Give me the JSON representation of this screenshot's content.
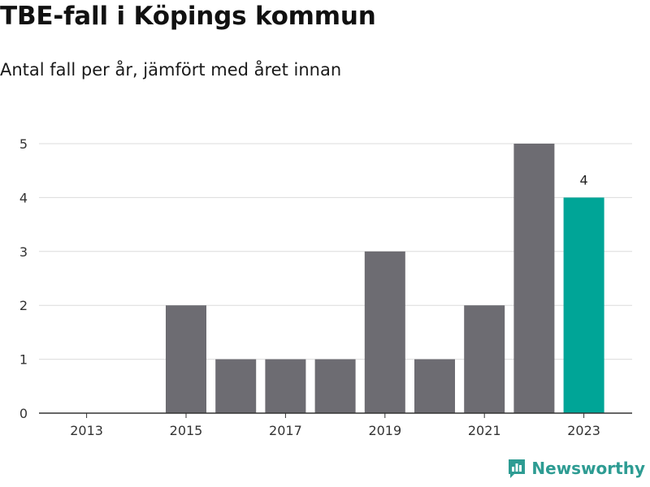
{
  "header": {
    "title": "TBE-fall i Köpings kommun",
    "subtitle": "Antal fall per år, jämfört med året innan"
  },
  "brand": {
    "name": "Newsworthy",
    "icon": "newsworthy-logo-icon",
    "color": "#2e9c93"
  },
  "chart_data": {
    "type": "bar",
    "categories": [
      "2013",
      "2014",
      "2015",
      "2016",
      "2017",
      "2018",
      "2019",
      "2020",
      "2021",
      "2022",
      "2023"
    ],
    "values": [
      0,
      0,
      2,
      1,
      1,
      1,
      3,
      1,
      2,
      5,
      4
    ],
    "x_tick_labels": [
      "2013",
      "2015",
      "2017",
      "2019",
      "2021",
      "2023"
    ],
    "y_ticks": [
      0,
      1,
      2,
      3,
      4,
      5
    ],
    "ylim": [
      0,
      5
    ],
    "grid": true,
    "data_labels": [
      {
        "category": "2023",
        "text": "4"
      }
    ],
    "colors": {
      "bar": "#6d6c72",
      "highlight": "#00a597",
      "grid": "#dcdcdc",
      "axis": "#333333"
    },
    "highlight_category": "2023"
  }
}
